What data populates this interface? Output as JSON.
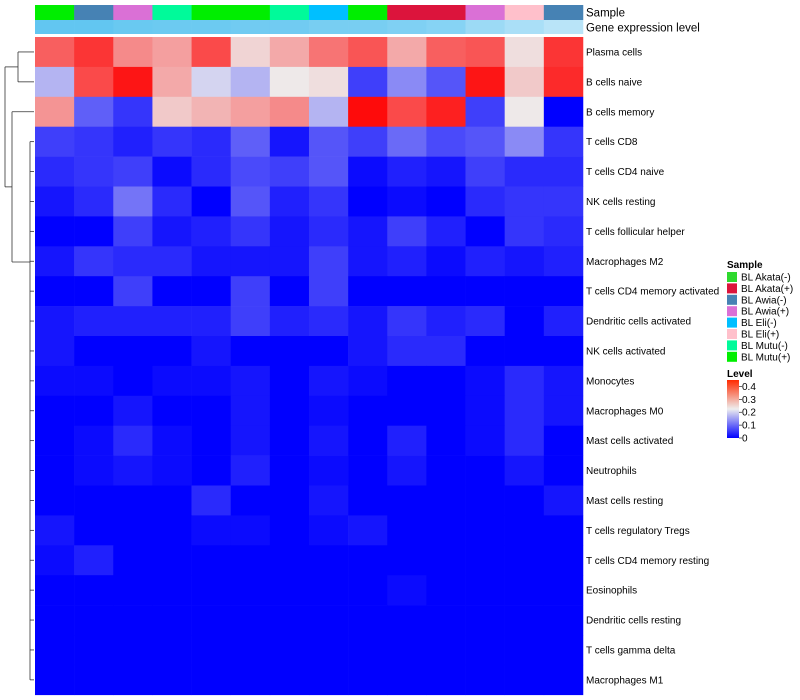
{
  "chart_data": {
    "type": "heatmap",
    "annotation_tracks": [
      {
        "name": "Sample"
      },
      {
        "name": "Gene expression level"
      }
    ],
    "columns": [
      "BL Mutu(+)",
      "BL Awia(-)",
      "BL Awia(+)",
      "BL Mutu(-)",
      "BL Mutu(+)",
      "BL Mutu(+)",
      "BL Mutu(-)",
      "BL Eli(-)",
      "BL Mutu(+)",
      "BL Akata(+)",
      "BL Akata(+)",
      "BL Awia(+)",
      "BL Eli(+)",
      "BL Awia(-)"
    ],
    "gene_expression_level": [
      0.95,
      0.95,
      0.9,
      0.88,
      0.88,
      0.85,
      0.85,
      0.8,
      0.8,
      0.75,
      0.7,
      0.55,
      0.45,
      0.35
    ],
    "rows": [
      "Plasma cells",
      "B cells naive",
      "B cells memory",
      "T cells CD8",
      "T cells CD4 naive",
      "NK cells resting",
      "T cells follicular helper",
      "Macrophages M2",
      "T cells CD4 memory activated",
      "Dendritic cells activated",
      "NK cells activated",
      "Monocytes",
      "Macrophages M0",
      "Mast cells activated",
      "Neutrophils",
      "Mast cells resting",
      "T cells regulatory  Tregs",
      "T cells CD4 memory resting",
      "Eosinophils",
      "Dendritic cells resting",
      "T cells gamma delta",
      "Macrophages M1"
    ],
    "values": [
      [
        0.36,
        0.4,
        0.32,
        0.3,
        0.38,
        0.25,
        0.29,
        0.34,
        0.37,
        0.29,
        0.36,
        0.37,
        0.24,
        0.4
      ],
      [
        0.17,
        0.38,
        0.43,
        0.29,
        0.2,
        0.17,
        0.23,
        0.24,
        0.06,
        0.13,
        0.08,
        0.43,
        0.26,
        0.41
      ],
      [
        0.31,
        0.09,
        0.05,
        0.26,
        0.28,
        0.3,
        0.32,
        0.17,
        0.44,
        0.38,
        0.42,
        0.06,
        0.23,
        0.0
      ],
      [
        0.06,
        0.05,
        0.03,
        0.05,
        0.04,
        0.09,
        0.02,
        0.08,
        0.06,
        0.1,
        0.07,
        0.08,
        0.13,
        0.05
      ],
      [
        0.04,
        0.05,
        0.06,
        0.01,
        0.04,
        0.07,
        0.06,
        0.08,
        0.01,
        0.03,
        0.02,
        0.06,
        0.04,
        0.04
      ],
      [
        0.02,
        0.04,
        0.11,
        0.04,
        0.0,
        0.08,
        0.03,
        0.05,
        0.0,
        0.01,
        0.0,
        0.04,
        0.05,
        0.05
      ],
      [
        0.0,
        0.0,
        0.06,
        0.02,
        0.03,
        0.05,
        0.02,
        0.04,
        0.02,
        0.06,
        0.03,
        0.0,
        0.05,
        0.04
      ],
      [
        0.02,
        0.05,
        0.04,
        0.04,
        0.02,
        0.02,
        0.02,
        0.06,
        0.02,
        0.03,
        0.01,
        0.03,
        0.02,
        0.03
      ],
      [
        0.0,
        0.0,
        0.06,
        0.0,
        0.0,
        0.06,
        0.0,
        0.06,
        0.0,
        0.0,
        0.0,
        0.0,
        0.0,
        0.0
      ],
      [
        0.02,
        0.03,
        0.03,
        0.03,
        0.03,
        0.06,
        0.03,
        0.04,
        0.02,
        0.05,
        0.03,
        0.04,
        0.0,
        0.03
      ],
      [
        0.02,
        0.0,
        0.0,
        0.0,
        0.02,
        0.0,
        0.0,
        0.0,
        0.02,
        0.04,
        0.04,
        0.0,
        0.0,
        0.0
      ],
      [
        0.01,
        0.01,
        0.0,
        0.01,
        0.01,
        0.02,
        0.0,
        0.02,
        0.01,
        0.0,
        0.0,
        0.01,
        0.04,
        0.02
      ],
      [
        0.0,
        0.0,
        0.02,
        0.0,
        0.0,
        0.02,
        0.0,
        0.01,
        0.0,
        0.0,
        0.0,
        0.01,
        0.04,
        0.02
      ],
      [
        0.0,
        0.01,
        0.04,
        0.01,
        0.0,
        0.02,
        0.0,
        0.02,
        0.0,
        0.03,
        0.0,
        0.01,
        0.04,
        0.0
      ],
      [
        0.0,
        0.01,
        0.02,
        0.01,
        0.0,
        0.03,
        0.0,
        0.01,
        0.0,
        0.02,
        0.0,
        0.0,
        0.02,
        0.0
      ],
      [
        0.0,
        0.0,
        0.0,
        0.0,
        0.04,
        0.0,
        0.0,
        0.02,
        0.0,
        0.0,
        0.0,
        0.0,
        0.0,
        0.02
      ],
      [
        0.02,
        0.0,
        0.0,
        0.0,
        0.01,
        0.01,
        0.0,
        0.01,
        0.02,
        0.0,
        0.0,
        0.0,
        0.0,
        0.0
      ],
      [
        0.01,
        0.03,
        0.0,
        0.0,
        0.0,
        0.0,
        0.0,
        0.0,
        0.0,
        0.0,
        0.0,
        0.0,
        0.0,
        0.0
      ],
      [
        0.0,
        0.0,
        0.0,
        0.0,
        0.0,
        0.0,
        0.0,
        0.0,
        0.0,
        0.01,
        0.0,
        0.0,
        0.0,
        0.0
      ],
      [
        0.0,
        0.0,
        0.0,
        0.0,
        0.0,
        0.0,
        0.0,
        0.0,
        0.0,
        0.0,
        0.0,
        0.0,
        0.0,
        0.0
      ],
      [
        0.0,
        0.0,
        0.0,
        0.0,
        0.0,
        0.0,
        0.0,
        0.0,
        0.0,
        0.0,
        0.0,
        0.0,
        0.0,
        0.0
      ],
      [
        0.0,
        0.0,
        0.0,
        0.0,
        0.0,
        0.0,
        0.0,
        0.0,
        0.0,
        0.0,
        0.0,
        0.0,
        0.0,
        0.0
      ]
    ],
    "color_scale": {
      "min": 0,
      "max": 0.45,
      "low": "#0000ff",
      "mid": "#eeeeee",
      "high": "#ff0000"
    },
    "sample_legend": {
      "title": "Sample",
      "items": [
        {
          "label": "BL Akata(-)",
          "color": "#2ed92e"
        },
        {
          "label": "BL Akata(+)",
          "color": "#dc143c"
        },
        {
          "label": "BL Awia(-)",
          "color": "#4682b4"
        },
        {
          "label": "BL Awia(+)",
          "color": "#da70d6"
        },
        {
          "label": "BL Eli(-)",
          "color": "#00bfff"
        },
        {
          "label": "BL Eli(+)",
          "color": "#ffc0cb"
        },
        {
          "label": "BL Mutu(-)",
          "color": "#00fa9a"
        },
        {
          "label": "BL Mutu(+)",
          "color": "#00ee00"
        }
      ]
    },
    "level_legend": {
      "title": "Level",
      "ticks": [
        "0.4",
        "0.3",
        "0.2",
        "0.1",
        "0"
      ],
      "tick_values": [
        0.4,
        0.3,
        0.2,
        0.1,
        0
      ]
    },
    "xlabel": "",
    "ylabel": ""
  }
}
